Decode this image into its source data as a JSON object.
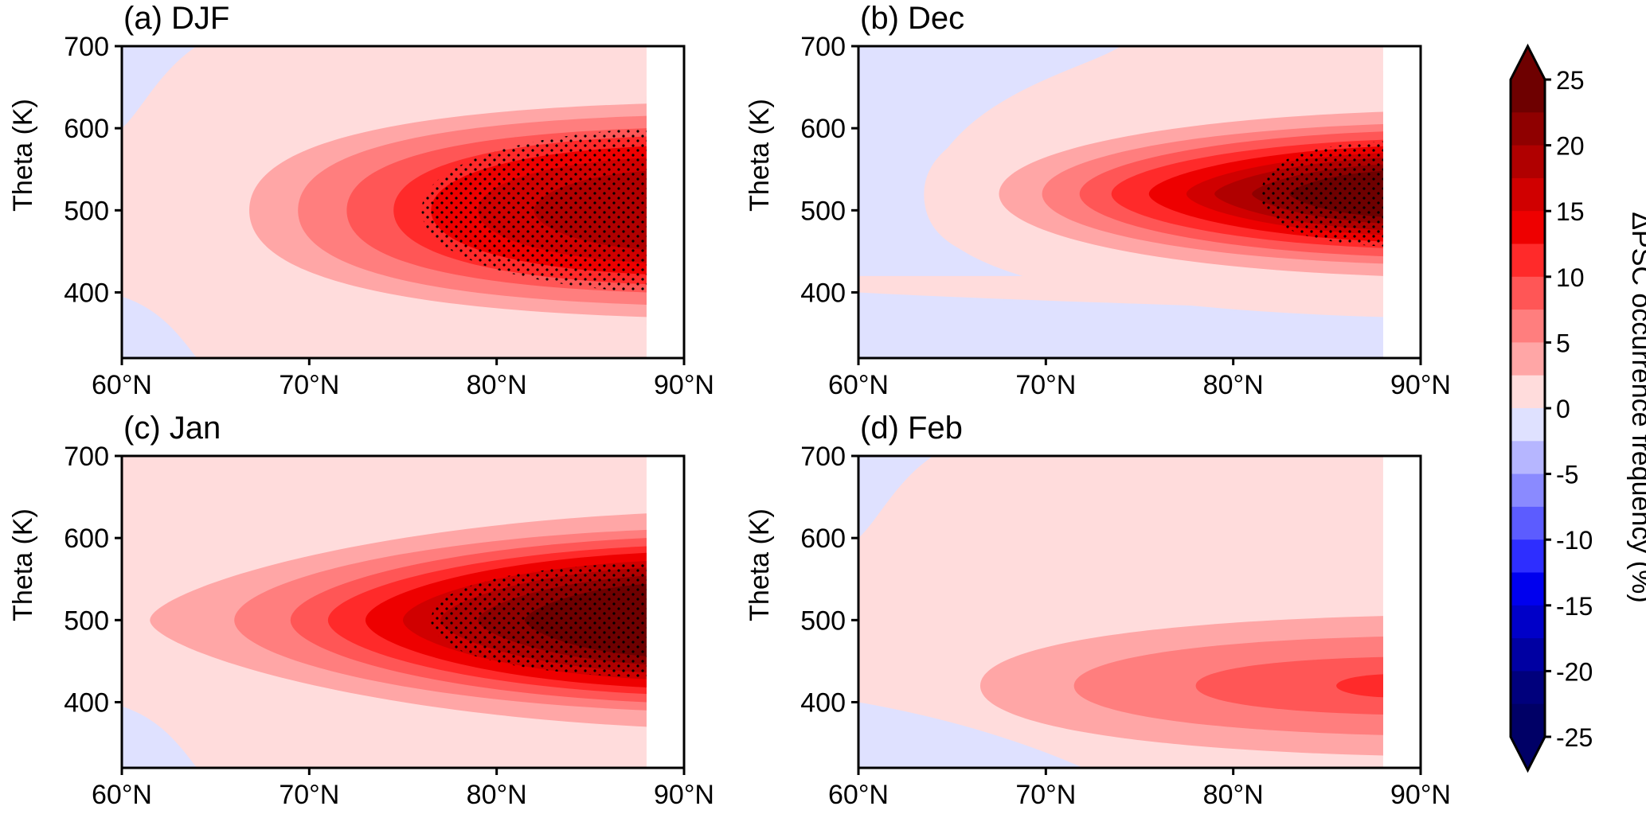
{
  "colorbar": {
    "label": "ΔPSC occurrence frequency (%)",
    "ticks": [
      "25",
      "20",
      "15",
      "10",
      "5",
      "0",
      "-5",
      "-10",
      "-15",
      "-20",
      "-25"
    ],
    "colors": [
      "#6e0000",
      "#8f0000",
      "#b00000",
      "#d00000",
      "#ee0000",
      "#ff2a2a",
      "#ff5656",
      "#ff7e7e",
      "#ffa6a6",
      "#ffdcdc",
      "#dfe1ff",
      "#b6b6ff",
      "#8a8aff",
      "#5c5cff",
      "#2e2eff",
      "#0000ee",
      "#0000c8",
      "#0000a2",
      "#00007c",
      "#000066"
    ],
    "extend": "both"
  },
  "chart_data": [
    {
      "type": "contour",
      "title": "(a) DJF",
      "xlabel": "",
      "ylabel": "Theta (K)",
      "xticks": [
        "60°N",
        "70°N",
        "80°N",
        "90°N"
      ],
      "yticks": [
        "400",
        "500",
        "600",
        "700"
      ],
      "xlim": [
        60,
        90
      ],
      "ylim": [
        320,
        700
      ],
      "data_xmax": 88,
      "peak": {
        "lat": 88,
        "theta": 500,
        "value": 20
      },
      "levels": [
        {
          "value": 0,
          "lat_start": 65.5,
          "theta_half_start": 95,
          "theta_half_end": 140
        },
        {
          "value": 3,
          "lat_start": 66.8,
          "theta_half_start": 80,
          "theta_half_end": 130
        },
        {
          "value": 5,
          "lat_start": 69.4,
          "theta_half_start": 70,
          "theta_half_end": 115
        },
        {
          "value": 7,
          "lat_start": 72.0,
          "theta_half_start": 60,
          "theta_half_end": 100
        },
        {
          "value": 10,
          "lat_start": 74.5,
          "theta_half_start": 50,
          "theta_half_end": 90
        },
        {
          "value": 13,
          "lat_start": 76.5,
          "theta_half_start": 40,
          "theta_half_end": 78
        },
        {
          "value": 16,
          "lat_start": 79.0,
          "theta_half_start": 30,
          "theta_half_end": 64
        },
        {
          "value": 18,
          "lat_start": 82.0,
          "theta_half_start": 18,
          "theta_half_end": 48
        }
      ],
      "stipple": {
        "lat_start": 76.0,
        "theta_half_start": 50,
        "theta_half_end": 100
      },
      "negative_regions": [
        "upper-left",
        "lower-left"
      ]
    },
    {
      "type": "contour",
      "title": "(b) Dec",
      "xlabel": "",
      "ylabel": "Theta (K)",
      "xticks": [
        "60°N",
        "70°N",
        "80°N",
        "90°N"
      ],
      "yticks": [
        "400",
        "500",
        "600",
        "700"
      ],
      "xlim": [
        60,
        90
      ],
      "ylim": [
        320,
        700
      ],
      "data_xmax": 88,
      "peak": {
        "lat": 87,
        "theta": 520,
        "value": 25
      },
      "levels": [
        {
          "value": 0,
          "lat_start": 63.5,
          "theta_half_start": 95,
          "theta_half_end": 150
        },
        {
          "value": 3,
          "lat_start": 67.5,
          "theta_half_start": 45,
          "theta_half_end": 100
        },
        {
          "value": 5,
          "lat_start": 69.8,
          "theta_half_start": 38,
          "theta_half_end": 85
        },
        {
          "value": 7,
          "lat_start": 71.8,
          "theta_half_start": 30,
          "theta_half_end": 76
        },
        {
          "value": 10,
          "lat_start": 73.5,
          "theta_half_start": 24,
          "theta_half_end": 66
        },
        {
          "value": 13,
          "lat_start": 75.5,
          "theta_half_start": 18,
          "theta_half_end": 58
        },
        {
          "value": 16,
          "lat_start": 77.5,
          "theta_half_start": 14,
          "theta_half_end": 50
        },
        {
          "value": 18,
          "lat_start": 79.0,
          "theta_half_start": 10,
          "theta_half_end": 44
        },
        {
          "value": 20,
          "lat_start": 81.0,
          "theta_half_start": 8,
          "theta_half_end": 36
        },
        {
          "value": 22,
          "lat_start": 83.0,
          "theta_half_start": 6,
          "theta_half_end": 28
        }
      ],
      "stipple": {
        "lat_start": 81.5,
        "theta_half_start": 40,
        "theta_half_end": 64
      },
      "negative_regions": [
        "upper-left",
        "lower"
      ]
    },
    {
      "type": "contour",
      "title": "(c) Jan",
      "xlabel": "",
      "ylabel": "Theta (K)",
      "xticks": [
        "60°N",
        "70°N",
        "80°N",
        "90°N"
      ],
      "yticks": [
        "400",
        "500",
        "600",
        "700"
      ],
      "xlim": [
        60,
        90
      ],
      "ylim": [
        320,
        700
      ],
      "data_xmax": 88,
      "peak": {
        "lat": 88,
        "theta": 500,
        "value": 25
      },
      "levels": [
        {
          "value": 3,
          "lat_start": 61.5,
          "theta_half_start": 30,
          "theta_half_end": 130
        },
        {
          "value": 5,
          "lat_start": 66.0,
          "theta_half_start": 40,
          "theta_half_end": 110
        },
        {
          "value": 7,
          "lat_start": 69.0,
          "theta_half_start": 35,
          "theta_half_end": 100
        },
        {
          "value": 10,
          "lat_start": 71.0,
          "theta_half_start": 30,
          "theta_half_end": 90
        },
        {
          "value": 13,
          "lat_start": 73.0,
          "theta_half_start": 26,
          "theta_half_end": 82
        },
        {
          "value": 16,
          "lat_start": 75.0,
          "theta_half_start": 22,
          "theta_half_end": 72
        },
        {
          "value": 18,
          "lat_start": 77.0,
          "theta_half_start": 18,
          "theta_half_end": 64
        },
        {
          "value": 20,
          "lat_start": 79.0,
          "theta_half_start": 14,
          "theta_half_end": 54
        },
        {
          "value": 22,
          "lat_start": 81.5,
          "theta_half_start": 10,
          "theta_half_end": 44
        }
      ],
      "stipple": {
        "lat_start": 76.5,
        "theta_half_start": 40,
        "theta_half_end": 70
      },
      "negative_regions": [
        "lower-left"
      ]
    },
    {
      "type": "contour",
      "title": "(d) Feb",
      "xlabel": "",
      "ylabel": "Theta (K)",
      "xticks": [
        "60°N",
        "70°N",
        "80°N",
        "90°N"
      ],
      "yticks": [
        "400",
        "500",
        "600",
        "700"
      ],
      "xlim": [
        60,
        90
      ],
      "ylim": [
        320,
        700
      ],
      "data_xmax": 88,
      "peak": {
        "lat": 88,
        "theta": 420,
        "value": 10
      },
      "levels": [
        {
          "value": 3,
          "lat_start": 66.5,
          "theta_half_start": 45,
          "theta_half_end": 85
        },
        {
          "value": 5,
          "lat_start": 71.5,
          "theta_half_start": 30,
          "theta_half_end": 60
        },
        {
          "value": 7,
          "lat_start": 78.0,
          "theta_half_start": 18,
          "theta_half_end": 35
        },
        {
          "value": 10,
          "lat_start": 85.5,
          "theta_half_start": 6,
          "theta_half_end": 14
        }
      ],
      "stipple": null,
      "negative_regions": [
        "upper-left",
        "lower-left"
      ]
    }
  ]
}
